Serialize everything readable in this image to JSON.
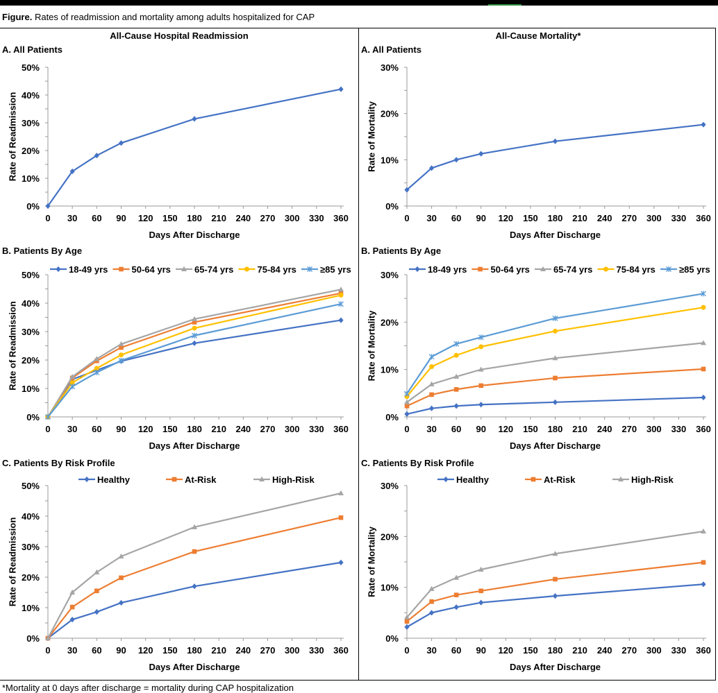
{
  "caption": {
    "label": "Figure.",
    "text": " Rates of readmission and mortality among adults hospitalized for CAP"
  },
  "columns": {
    "left": "All-Cause Hospital Readmission",
    "right": "All-Cause Mortality*"
  },
  "footnote": "*Mortality at 0 days after discharge = mortality during CAP hospitalization",
  "colors": {
    "blue": "#4472C4",
    "orange": "#ED7D31",
    "gray": "#A5A5A5",
    "yellow": "#FFC000",
    "lightblue": "#5B9BD5"
  },
  "chart_data": [
    {
      "id": "readm-a",
      "type": "line",
      "panel_label": "A. All Patients",
      "xlabel": "Days After Discharge",
      "ylabel": "Rate of Readmission",
      "x": [
        0,
        30,
        60,
        90,
        180,
        360
      ],
      "xlim": [
        0,
        360
      ],
      "xticks": [
        0,
        30,
        60,
        90,
        120,
        150,
        180,
        210,
        240,
        270,
        300,
        330,
        360
      ],
      "ylim": [
        0,
        50
      ],
      "yticks": [
        0,
        10,
        20,
        30,
        40,
        50
      ],
      "ytick_labels": [
        "0%",
        "10%",
        "20%",
        "30%",
        "40%",
        "50%"
      ],
      "grid": false,
      "legend": "none",
      "series": [
        {
          "values": [
            0,
            12.5,
            18.2,
            22.7,
            31.4,
            42.1
          ],
          "color": "#4472C4",
          "marker": "diamond"
        }
      ]
    },
    {
      "id": "mort-a",
      "type": "line",
      "panel_label": "A. All Patients",
      "xlabel": "Days After Discharge",
      "ylabel": "Rate of Mortality",
      "x": [
        0,
        30,
        60,
        90,
        180,
        360
      ],
      "xlim": [
        0,
        360
      ],
      "xticks": [
        0,
        30,
        60,
        90,
        120,
        150,
        180,
        210,
        240,
        270,
        300,
        330,
        360
      ],
      "ylim": [
        0,
        30
      ],
      "yticks": [
        0,
        10,
        20,
        30
      ],
      "ytick_labels": [
        "0%",
        "10%",
        "20%",
        "30%"
      ],
      "grid": false,
      "legend": "none",
      "series": [
        {
          "values": [
            3.5,
            8.2,
            10.0,
            11.3,
            14.0,
            17.6
          ],
          "color": "#4472C4",
          "marker": "diamond"
        }
      ]
    },
    {
      "id": "readm-b",
      "type": "line",
      "panel_label": "B. Patients By Age",
      "xlabel": "Days After Discharge",
      "ylabel": "Rate of Readmission",
      "x": [
        0,
        30,
        60,
        90,
        180,
        360
      ],
      "xlim": [
        0,
        360
      ],
      "xticks": [
        0,
        30,
        60,
        90,
        120,
        150,
        180,
        210,
        240,
        270,
        300,
        330,
        360
      ],
      "ylim": [
        0,
        50
      ],
      "yticks": [
        0,
        10,
        20,
        30,
        40,
        50
      ],
      "ytick_labels": [
        "0%",
        "10%",
        "20%",
        "30%",
        "40%",
        "50%"
      ],
      "grid": false,
      "legend": "top",
      "series": [
        {
          "name": "18-49 yrs",
          "values": [
            0,
            13.2,
            16.4,
            19.6,
            25.9,
            34.0
          ],
          "color": "#4472C4",
          "marker": "diamond"
        },
        {
          "name": "50-64 yrs",
          "values": [
            0,
            13.7,
            19.7,
            24.4,
            33.3,
            43.5
          ],
          "color": "#ED7D31",
          "marker": "square"
        },
        {
          "name": "65-74 yrs",
          "values": [
            0,
            14.1,
            20.4,
            25.6,
            34.4,
            44.8
          ],
          "color": "#A5A5A5",
          "marker": "triangle"
        },
        {
          "name": "75-84 yrs",
          "values": [
            0,
            12.0,
            17.1,
            21.8,
            31.2,
            42.8
          ],
          "color": "#FFC000",
          "marker": "circle"
        },
        {
          "name": "≥85 yrs",
          "values": [
            0,
            10.7,
            15.6,
            19.8,
            28.6,
            39.7
          ],
          "color": "#5B9BD5",
          "marker": "star"
        }
      ]
    },
    {
      "id": "mort-b",
      "type": "line",
      "panel_label": "B. Patients By Age",
      "xlabel": "Days After Discharge",
      "ylabel": "Rate of Mortality",
      "x": [
        0,
        30,
        60,
        90,
        180,
        360
      ],
      "xlim": [
        0,
        360
      ],
      "xticks": [
        0,
        30,
        60,
        90,
        120,
        150,
        180,
        210,
        240,
        270,
        300,
        330,
        360
      ],
      "ylim": [
        0,
        30
      ],
      "yticks": [
        0,
        10,
        20,
        30
      ],
      "ytick_labels": [
        "0%",
        "10%",
        "20%",
        "30%"
      ],
      "grid": false,
      "legend": "top",
      "series": [
        {
          "name": "18-49 yrs",
          "values": [
            0.6,
            1.8,
            2.3,
            2.6,
            3.1,
            4.1
          ],
          "color": "#4472C4",
          "marker": "diamond"
        },
        {
          "name": "50-64 yrs",
          "values": [
            2.3,
            4.7,
            5.8,
            6.6,
            8.2,
            10.1
          ],
          "color": "#ED7D31",
          "marker": "square"
        },
        {
          "name": "65-74 yrs",
          "values": [
            3.1,
            6.9,
            8.5,
            10.0,
            12.4,
            15.6
          ],
          "color": "#A5A5A5",
          "marker": "triangle"
        },
        {
          "name": "75-84 yrs",
          "values": [
            4.3,
            10.6,
            13.0,
            14.8,
            18.1,
            23.1
          ],
          "color": "#FFC000",
          "marker": "circle"
        },
        {
          "name": "≥85 yrs",
          "values": [
            4.9,
            12.7,
            15.4,
            16.8,
            20.8,
            26.0
          ],
          "color": "#5B9BD5",
          "marker": "star"
        }
      ]
    },
    {
      "id": "readm-c",
      "type": "line",
      "panel_label": "C. Patients By Risk Profile",
      "xlabel": "Days After Discharge",
      "ylabel": "Rate of Readmission",
      "x": [
        0,
        30,
        60,
        90,
        180,
        360
      ],
      "xlim": [
        0,
        360
      ],
      "xticks": [
        0,
        30,
        60,
        90,
        120,
        150,
        180,
        210,
        240,
        270,
        300,
        330,
        360
      ],
      "ylim": [
        0,
        50
      ],
      "yticks": [
        0,
        10,
        20,
        30,
        40,
        50
      ],
      "ytick_labels": [
        "0%",
        "10%",
        "20%",
        "30%",
        "40%",
        "50%"
      ],
      "grid": false,
      "legend": "top",
      "series": [
        {
          "name": "Healthy",
          "values": [
            0,
            6.1,
            8.6,
            11.6,
            17.0,
            24.8
          ],
          "color": "#4472C4",
          "marker": "diamond"
        },
        {
          "name": "At-Risk",
          "values": [
            0,
            10.2,
            15.5,
            19.8,
            28.4,
            39.5
          ],
          "color": "#ED7D31",
          "marker": "square"
        },
        {
          "name": "High-Risk",
          "values": [
            0,
            15.0,
            21.6,
            26.8,
            36.4,
            47.5
          ],
          "color": "#A5A5A5",
          "marker": "triangle"
        }
      ]
    },
    {
      "id": "mort-c",
      "type": "line",
      "panel_label": "C. Patients By Risk Profile",
      "xlabel": "Days After Discharge",
      "ylabel": "Rate of Mortality",
      "x": [
        0,
        30,
        60,
        90,
        180,
        360
      ],
      "xlim": [
        0,
        360
      ],
      "xticks": [
        0,
        30,
        60,
        90,
        120,
        150,
        180,
        210,
        240,
        270,
        300,
        330,
        360
      ],
      "ylim": [
        0,
        30
      ],
      "yticks": [
        0,
        10,
        20,
        30
      ],
      "ytick_labels": [
        "0%",
        "10%",
        "20%",
        "30%"
      ],
      "grid": false,
      "legend": "top",
      "series": [
        {
          "name": "Healthy",
          "values": [
            2.2,
            5.0,
            6.1,
            7.0,
            8.3,
            10.6
          ],
          "color": "#4472C4",
          "marker": "diamond"
        },
        {
          "name": "At-Risk",
          "values": [
            3.3,
            7.2,
            8.5,
            9.3,
            11.6,
            14.9
          ],
          "color": "#ED7D31",
          "marker": "square"
        },
        {
          "name": "High-Risk",
          "values": [
            4.1,
            9.7,
            11.9,
            13.5,
            16.6,
            21.0
          ],
          "color": "#A5A5A5",
          "marker": "triangle"
        }
      ]
    }
  ]
}
